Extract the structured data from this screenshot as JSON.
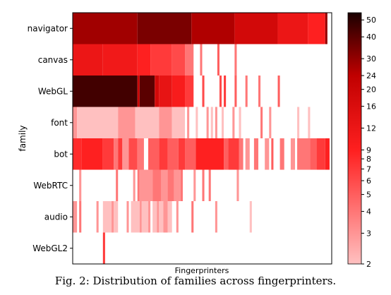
{
  "chart_data": {
    "type": "heatmap",
    "title": "",
    "xlabel": "Fingerprinters",
    "ylabel": "family",
    "rows": [
      "navigator",
      "canvas",
      "WebGL",
      "font",
      "bot",
      "WebRTC",
      "audio",
      "WebGL2"
    ],
    "n_columns": 120,
    "colorbar": {
      "scale": "log",
      "range": [
        2,
        55
      ],
      "ticks": [
        2,
        3,
        4,
        5,
        6,
        7,
        8,
        9,
        12,
        16,
        20,
        24,
        30,
        40,
        50
      ],
      "colormap": "white-red-black"
    },
    "segments": {
      "navigator": [
        [
          0,
          30,
          28
        ],
        [
          30,
          55,
          34
        ],
        [
          55,
          75,
          26
        ],
        [
          75,
          95,
          18
        ],
        [
          95,
          109,
          12
        ],
        [
          109,
          117,
          9
        ],
        [
          117,
          118,
          30
        ]
      ],
      "canvas": [
        [
          0,
          14,
          12
        ],
        [
          14,
          30,
          11
        ],
        [
          30,
          36,
          9
        ],
        [
          36,
          46,
          7
        ],
        [
          46,
          52,
          6
        ],
        [
          52,
          56,
          4
        ],
        [
          59,
          60,
          4
        ],
        [
          67,
          68,
          5
        ],
        [
          75,
          76,
          4
        ]
      ],
      "WebGL": [
        [
          0,
          30,
          45
        ],
        [
          30,
          31,
          20
        ],
        [
          31,
          38,
          40
        ],
        [
          38,
          40,
          18
        ],
        [
          40,
          46,
          13
        ],
        [
          46,
          52,
          10
        ],
        [
          52,
          56,
          7
        ],
        [
          60,
          61,
          6
        ],
        [
          68,
          69,
          6
        ],
        [
          70,
          71,
          7
        ],
        [
          75,
          76,
          5
        ],
        [
          80,
          81,
          4
        ],
        [
          86,
          87,
          4
        ],
        [
          95,
          96,
          5
        ]
      ],
      "font": [
        [
          0,
          2,
          3
        ],
        [
          2,
          21,
          2
        ],
        [
          21,
          29,
          3
        ],
        [
          29,
          40,
          2
        ],
        [
          40,
          46,
          3
        ],
        [
          46,
          52,
          2
        ],
        [
          53,
          54,
          3
        ],
        [
          57,
          58,
          2
        ],
        [
          62,
          63,
          3
        ],
        [
          64,
          65,
          2
        ],
        [
          66,
          67,
          3
        ],
        [
          69,
          70,
          2
        ],
        [
          74,
          75,
          3
        ],
        [
          77,
          78,
          2
        ],
        [
          87,
          88,
          4
        ],
        [
          91,
          92,
          3
        ],
        [
          104,
          105,
          2
        ],
        [
          109,
          110,
          2
        ]
      ],
      "bot": [
        [
          0,
          4,
          8
        ],
        [
          4,
          14,
          9
        ],
        [
          14,
          19,
          7
        ],
        [
          19,
          21,
          4
        ],
        [
          21,
          23,
          7
        ],
        [
          23,
          26,
          3
        ],
        [
          26,
          30,
          6
        ],
        [
          30,
          33,
          4
        ],
        [
          35,
          40,
          5
        ],
        [
          40,
          44,
          7
        ],
        [
          44,
          49,
          5
        ],
        [
          49,
          52,
          7
        ],
        [
          52,
          57,
          5
        ],
        [
          57,
          70,
          9
        ],
        [
          70,
          72,
          5
        ],
        [
          72,
          77,
          7
        ],
        [
          77,
          79,
          4
        ],
        [
          80,
          82,
          3
        ],
        [
          84,
          86,
          4
        ],
        [
          89,
          91,
          3
        ],
        [
          92,
          93,
          5
        ],
        [
          96,
          98,
          4
        ],
        [
          101,
          103,
          3
        ],
        [
          104,
          110,
          4
        ],
        [
          110,
          113,
          5
        ],
        [
          113,
          117,
          7
        ],
        [
          117,
          119,
          9
        ]
      ],
      "WebRTC": [
        [
          3,
          4,
          3
        ],
        [
          20,
          21,
          4
        ],
        [
          28,
          29,
          3
        ],
        [
          30,
          31,
          4
        ],
        [
          31,
          37,
          3
        ],
        [
          37,
          41,
          4
        ],
        [
          41,
          44,
          3
        ],
        [
          44,
          47,
          4
        ],
        [
          47,
          50,
          3
        ],
        [
          50,
          51,
          4
        ],
        [
          56,
          57,
          3
        ],
        [
          60,
          61,
          4
        ],
        [
          63,
          64,
          4
        ],
        [
          76,
          77,
          3
        ]
      ],
      "audio": [
        [
          0,
          2,
          3
        ],
        [
          3,
          4,
          4
        ],
        [
          11,
          12,
          3
        ],
        [
          14,
          18,
          2
        ],
        [
          18,
          19,
          3
        ],
        [
          19,
          21,
          2
        ],
        [
          25,
          26,
          3
        ],
        [
          27,
          31,
          2
        ],
        [
          31,
          32,
          3
        ],
        [
          32,
          35,
          2
        ],
        [
          35,
          36,
          3
        ],
        [
          37,
          39,
          2
        ],
        [
          39,
          40,
          3
        ],
        [
          40,
          42,
          2
        ],
        [
          42,
          44,
          3
        ],
        [
          44,
          46,
          2
        ],
        [
          48,
          49,
          3
        ],
        [
          55,
          56,
          4
        ],
        [
          66,
          67,
          3
        ],
        [
          82,
          83,
          2
        ]
      ],
      "WebGL2": [
        [
          14,
          15,
          7
        ]
      ]
    }
  },
  "caption": "Fig. 2: Distribution of families across fingerprinters."
}
